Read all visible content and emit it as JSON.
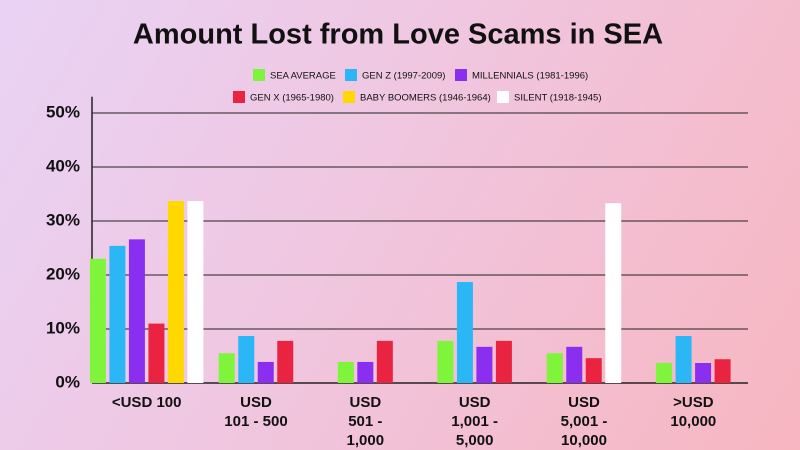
{
  "chart_data": {
    "type": "bar",
    "title": "Amount Lost from Love Scams in SEA",
    "categories": [
      "<USD 100",
      "USD\n101 - 500",
      "USD\n501 -\n1,000",
      "USD\n1,001 -\n5,000",
      "USD\n5,001 -\n10,000",
      ">USD\n10,000"
    ],
    "series": [
      {
        "name": "SEA AVERAGE",
        "color": "#7ef53a",
        "values": [
          23,
          5.5,
          3.9,
          7.8,
          5.5,
          3.7
        ]
      },
      {
        "name": "GEN Z (1997-2009)",
        "color": "#2bb6f5",
        "values": [
          25.4,
          8.7,
          null,
          18.7,
          null,
          8.7
        ]
      },
      {
        "name": "MILLENNIALS (1981-1996)",
        "color": "#8a2ef0",
        "values": [
          26.6,
          3.9,
          3.9,
          6.7,
          6.7,
          3.7
        ]
      },
      {
        "name": "GEN X (1965-1980)",
        "color": "#ea2440",
        "values": [
          11,
          7.8,
          7.8,
          7.8,
          4.6,
          4.4
        ]
      },
      {
        "name": "BABY BOOMERS (1946-1964)",
        "color": "#ffd800",
        "values": [
          33.7,
          null,
          null,
          null,
          null,
          null
        ]
      },
      {
        "name": "SILENT (1918-1945)",
        "color": "#ffffff",
        "values": [
          33.7,
          null,
          null,
          null,
          33.3,
          null
        ]
      }
    ],
    "ylim": [
      0,
      53
    ],
    "yticks": [
      {
        "value": 0,
        "label": "0%"
      },
      {
        "value": 10,
        "label": "10%"
      },
      {
        "value": 20,
        "label": "20%"
      },
      {
        "value": 30,
        "label": "30%"
      },
      {
        "value": 40,
        "label": "40%"
      },
      {
        "value": 50,
        "label": "50%"
      }
    ],
    "grid": true
  }
}
